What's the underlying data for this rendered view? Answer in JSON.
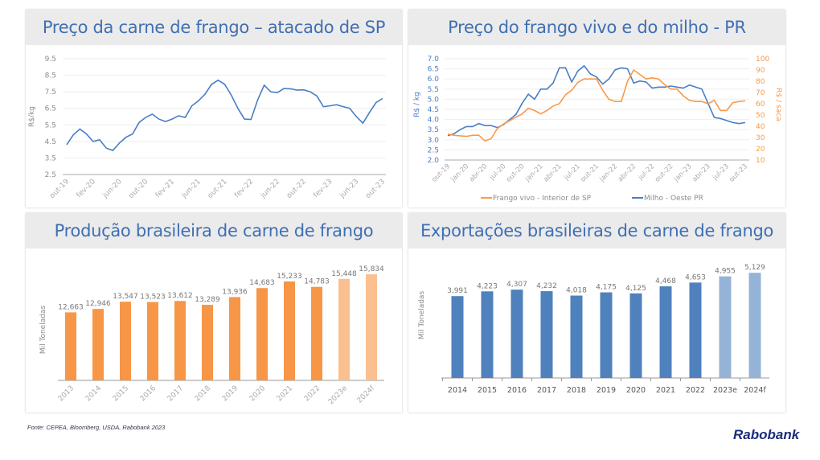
{
  "colors": {
    "orange": "#f79646",
    "orange_light": "#fac090",
    "blue": "#4f81bd",
    "blue_light": "#95b3d7",
    "line_blue": "#4a7ec4",
    "line_orange": "#f79a4a"
  },
  "footer": {
    "source": "Fonte: CEPEA, Bloomberg, USDA, Rabobank 2023",
    "logo": "Rabobank"
  },
  "chart_data": [
    {
      "type": "line",
      "title": "Preço da carne de frango – atacado de SP",
      "ylabel": "R$/kg",
      "ylim": [
        2.5,
        9.5
      ],
      "yticks": [
        "9.5",
        "8.5",
        "7.5",
        "6.5",
        "5.5",
        "4.5",
        "3.5",
        "2.5"
      ],
      "x_range": [
        "out-19",
        "out-23"
      ],
      "grid": true,
      "xticks": [
        "out-19",
        "fev-20",
        "jun-20",
        "out-20",
        "fev-21",
        "jun-21",
        "out-21",
        "fev-22",
        "jun-22",
        "out-22",
        "fev-23",
        "jun-23",
        "out-23"
      ],
      "series": [
        {
          "values": [
            4.3,
            4.9,
            5.25,
            4.95,
            4.5,
            4.6,
            4.1,
            3.95,
            4.4,
            4.75,
            4.95,
            5.65,
            5.95,
            6.15,
            5.85,
            5.7,
            5.85,
            6.05,
            5.95,
            6.65,
            6.95,
            7.35,
            7.95,
            8.2,
            7.95,
            7.3,
            6.5,
            5.85,
            5.83,
            7.0,
            7.9,
            7.5,
            7.45,
            7.7,
            7.68,
            7.6,
            7.62,
            7.5,
            7.25,
            6.6,
            6.65,
            6.72,
            6.6,
            6.5,
            6.0,
            5.6,
            6.25,
            6.85,
            7.1
          ]
        }
      ]
    },
    {
      "type": "line",
      "title": "Preço do frango vivo e do milho - PR",
      "ylabel": "R$ / kg",
      "ylabel_right": "R$ / saca",
      "ylim": [
        2.0,
        7.0
      ],
      "ylim_right": [
        10,
        100
      ],
      "yticks": [
        "7.0",
        "6.5",
        "6.0",
        "5.5",
        "5.0",
        "4.5",
        "4.0",
        "3.5",
        "3.0",
        "2.5",
        "2.0"
      ],
      "yticks_right": [
        "100",
        "90",
        "80",
        "70",
        "60",
        "50",
        "40",
        "30",
        "20",
        "10"
      ],
      "x_range": [
        "out-19",
        "out-23"
      ],
      "grid": true,
      "legend": "bottom",
      "xticks": [
        "out-19",
        "jan-20",
        "abr-20",
        "jul-20",
        "out-20",
        "jan-21",
        "abr-21",
        "jul-21",
        "out-21",
        "jan-22",
        "abr-22",
        "jul-22",
        "out-22",
        "jan-23",
        "abr-23",
        "jul-23",
        "out-23"
      ],
      "series": [
        {
          "name": "Milho - Oeste PR",
          "axis": "left",
          "values": [
            3.2,
            3.3,
            3.5,
            3.65,
            3.65,
            3.8,
            3.7,
            3.7,
            3.6,
            3.75,
            4.0,
            4.25,
            4.8,
            5.25,
            5.0,
            5.5,
            5.5,
            5.8,
            6.55,
            6.55,
            5.85,
            6.4,
            6.65,
            6.25,
            6.1,
            5.75,
            6.0,
            6.45,
            6.55,
            6.5,
            5.8,
            5.9,
            5.85,
            5.55,
            5.6,
            5.6,
            5.65,
            5.6,
            5.55,
            5.7,
            5.6,
            5.5,
            4.8,
            4.1,
            4.05,
            3.95,
            3.85,
            3.8,
            3.85
          ]
        },
        {
          "name": "Frango vivo - Interior de SP",
          "axis": "right",
          "values": [
            33,
            32,
            31.5,
            31,
            32,
            32,
            27,
            29,
            38,
            42,
            45,
            48,
            51,
            56,
            54,
            51,
            54,
            58,
            60,
            68,
            72,
            79,
            82,
            82,
            82,
            72,
            64,
            62,
            62,
            80,
            90,
            86,
            82,
            83,
            82,
            77,
            73,
            73,
            67,
            63,
            62,
            62,
            60,
            63,
            54,
            54,
            61,
            62,
            62.5
          ]
        }
      ]
    },
    {
      "type": "bar",
      "title": "Produção brasileira de carne de frango",
      "ylabel": "Mil Toneladas",
      "categories": [
        "2013",
        "2014",
        "2015",
        "2016",
        "2017",
        "2018",
        "2019",
        "2020",
        "2021",
        "2022",
        "2023e",
        "2024f"
      ],
      "values": [
        12663,
        12946,
        13547,
        13523,
        13612,
        13289,
        13936,
        14683,
        15233,
        14783,
        15448,
        15834
      ],
      "labels": [
        "12,663",
        "12,946",
        "13,547",
        "13,523",
        "13,612",
        "13,289",
        "13,936",
        "14,683",
        "15,233",
        "14,783",
        "15,448",
        "15,834"
      ],
      "forecast": [
        false,
        false,
        false,
        false,
        false,
        false,
        false,
        false,
        false,
        false,
        true,
        true
      ],
      "ylim": [
        7000,
        17000
      ]
    },
    {
      "type": "bar",
      "title": "Exportações brasileiras de carne de frango",
      "ylabel": "Mil Toneladas",
      "categories": [
        "2014",
        "2015",
        "2016",
        "2017",
        "2018",
        "2019",
        "2020",
        "2021",
        "2022",
        "2023e",
        "2024f"
      ],
      "values": [
        3991,
        4223,
        4307,
        4232,
        4018,
        4175,
        4125,
        4468,
        4653,
        4955,
        5129
      ],
      "labels": [
        "3,991",
        "4,223",
        "4,307",
        "4,232",
        "4,018",
        "4,175",
        "4,125",
        "4,468",
        "4,653",
        "4,955",
        "5,129"
      ],
      "forecast": [
        false,
        false,
        false,
        false,
        false,
        false,
        false,
        false,
        false,
        true,
        true
      ],
      "ylim": [
        0,
        6000
      ]
    }
  ]
}
